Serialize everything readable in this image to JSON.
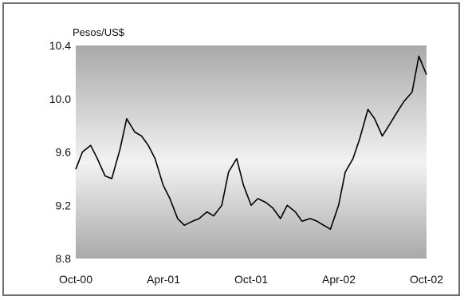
{
  "chart_data": {
    "type": "line",
    "title": "",
    "ylabel": "Pesos/US$",
    "xlabel": "",
    "ylim": [
      8.8,
      10.4
    ],
    "yticks": [
      "8.8",
      "9.2",
      "9.6",
      "10.0",
      "10.4"
    ],
    "xtick_labels": [
      "Oct-00",
      "Apr-01",
      "Oct-01",
      "Apr-02",
      "Oct-02"
    ],
    "grid": false,
    "plot_background": "gradient-gray",
    "line_color": "#000000",
    "series": [
      {
        "x": [
          "2000-10-01",
          "2000-10-15",
          "2000-11-01",
          "2000-11-15",
          "2000-12-01",
          "2000-12-15",
          "2001-01-01",
          "2001-01-15",
          "2001-02-01",
          "2001-02-15",
          "2001-03-01",
          "2001-03-15",
          "2001-04-01",
          "2001-04-15",
          "2001-05-01",
          "2001-05-15",
          "2001-06-01",
          "2001-06-15",
          "2001-07-01",
          "2001-07-15",
          "2001-08-01",
          "2001-08-15",
          "2001-09-01",
          "2001-09-15",
          "2001-10-01",
          "2001-10-15",
          "2001-11-01",
          "2001-11-15",
          "2001-12-01",
          "2001-12-15",
          "2002-01-01",
          "2002-01-15",
          "2002-02-01",
          "2002-02-15",
          "2002-03-01",
          "2002-03-15",
          "2002-04-01",
          "2002-04-15",
          "2002-05-01",
          "2002-05-15",
          "2002-06-01",
          "2002-06-15",
          "2002-07-01",
          "2002-07-15",
          "2002-08-01",
          "2002-08-15",
          "2002-09-01",
          "2002-09-15",
          "2002-10-01"
        ],
        "values": [
          9.47,
          9.6,
          9.65,
          9.55,
          9.42,
          9.4,
          9.62,
          9.85,
          9.75,
          9.72,
          9.65,
          9.55,
          9.35,
          9.25,
          9.1,
          9.05,
          9.08,
          9.1,
          9.15,
          9.12,
          9.2,
          9.45,
          9.55,
          9.35,
          9.2,
          9.25,
          9.22,
          9.18,
          9.1,
          9.2,
          9.15,
          9.08,
          9.1,
          9.08,
          9.05,
          9.02,
          9.2,
          9.45,
          9.55,
          9.7,
          9.92,
          9.85,
          9.72,
          9.8,
          9.9,
          9.98,
          10.05,
          10.32,
          10.18
        ]
      }
    ]
  }
}
